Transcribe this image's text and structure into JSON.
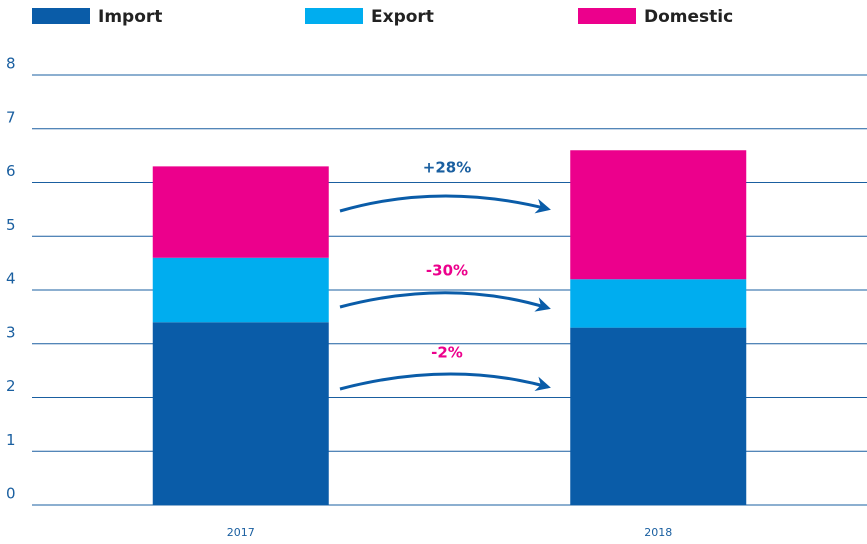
{
  "chart_data": {
    "type": "bar",
    "stacked": true,
    "categories": [
      "2017",
      "2018"
    ],
    "series": [
      {
        "name": "Import",
        "color": "#0a5ca8",
        "values": [
          3.4,
          3.3
        ]
      },
      {
        "name": "Export",
        "color": "#00adef",
        "values": [
          1.2,
          0.9
        ]
      },
      {
        "name": "Domestic",
        "color": "#ec008c",
        "values": [
          1.7,
          2.4
        ]
      }
    ],
    "annotations": [
      {
        "text": "+28%",
        "color": "#1a5fa0"
      },
      {
        "text": "-30%",
        "color": "#ec008c"
      },
      {
        "text": "-2%",
        "color": "#ec008c"
      }
    ],
    "ylim": [
      0,
      8
    ],
    "yticks": [
      0,
      1,
      2,
      3,
      4,
      5,
      6,
      7,
      8
    ],
    "grid": true,
    "legend": "top"
  }
}
